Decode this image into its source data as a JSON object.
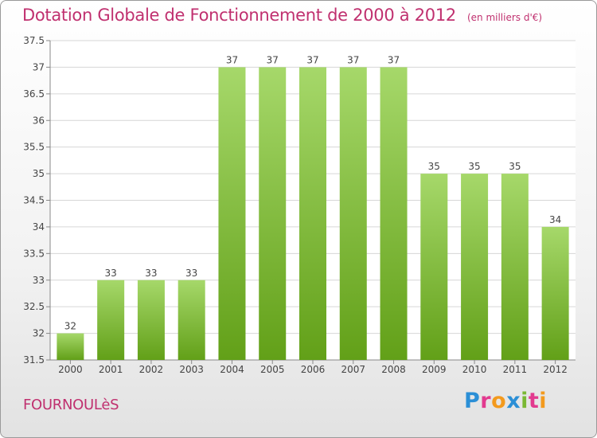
{
  "title": "Dotation Globale de Fonctionnement de 2000 à 2012",
  "unit": "(en milliers d'€)",
  "commune": "FOURNOULèS",
  "logo": {
    "letters": [
      "P",
      "r",
      "o",
      "x",
      "i",
      "t",
      "i"
    ],
    "colors": [
      "#2b8fd6",
      "#e23a8f",
      "#f39a1e",
      "#2b8fd6",
      "#7ab833",
      "#e23a8f",
      "#f39a1e"
    ]
  },
  "colors": {
    "bar_light": "#a6d86a",
    "bar_dark": "#62a018",
    "text": "#c0306f"
  },
  "chart_data": {
    "type": "bar",
    "categories": [
      "2000",
      "2001",
      "2002",
      "2003",
      "2004",
      "2005",
      "2006",
      "2007",
      "2008",
      "2009",
      "2010",
      "2011",
      "2012"
    ],
    "values": [
      32,
      33,
      33,
      33,
      37,
      37,
      37,
      37,
      37,
      35,
      35,
      35,
      34
    ],
    "ylim": [
      31.5,
      37.5
    ],
    "yticks": [
      31.5,
      32,
      32.5,
      33,
      33.5,
      34,
      34.5,
      35,
      35.5,
      36,
      36.5,
      37,
      37.5
    ],
    "grid": true,
    "title": "Dotation Globale de Fonctionnement de 2000 à 2012",
    "xlabel": "",
    "ylabel": ""
  }
}
